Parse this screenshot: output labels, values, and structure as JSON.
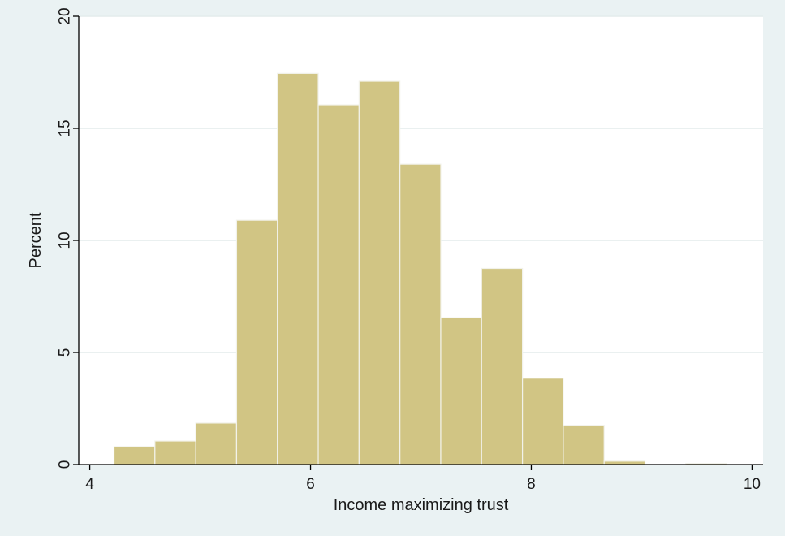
{
  "chart_data": {
    "type": "bar",
    "subtype": "histogram",
    "xlabel": "Income maximizing trust",
    "ylabel": "Percent",
    "xlim": [
      3.9,
      10.1
    ],
    "ylim": [
      0,
      20
    ],
    "xticks": [
      4,
      6,
      8,
      10
    ],
    "yticks": [
      0,
      5,
      10,
      15,
      20
    ],
    "grid": "horizontal",
    "bin_width": 0.37,
    "bins": [
      {
        "start": 4.22,
        "value": 0.8
      },
      {
        "start": 4.59,
        "value": 1.05
      },
      {
        "start": 4.96,
        "value": 1.85
      },
      {
        "start": 5.33,
        "value": 10.9
      },
      {
        "start": 5.7,
        "value": 17.45
      },
      {
        "start": 6.07,
        "value": 16.05
      },
      {
        "start": 6.44,
        "value": 17.1
      },
      {
        "start": 6.81,
        "value": 13.4
      },
      {
        "start": 7.18,
        "value": 6.55
      },
      {
        "start": 7.55,
        "value": 8.75
      },
      {
        "start": 7.92,
        "value": 3.85
      },
      {
        "start": 8.29,
        "value": 1.75
      },
      {
        "start": 8.66,
        "value": 0.15
      },
      {
        "start": 9.03,
        "value": 0.0
      },
      {
        "start": 9.4,
        "value": 0.05
      }
    ],
    "colors": {
      "bar_fill": "#d1c584",
      "bar_stroke": "#f2f2ea",
      "plot_bg": "#ffffff",
      "outer_bg": "#eaf2f3",
      "grid": "#e3ecec",
      "axis": "#000000"
    }
  }
}
